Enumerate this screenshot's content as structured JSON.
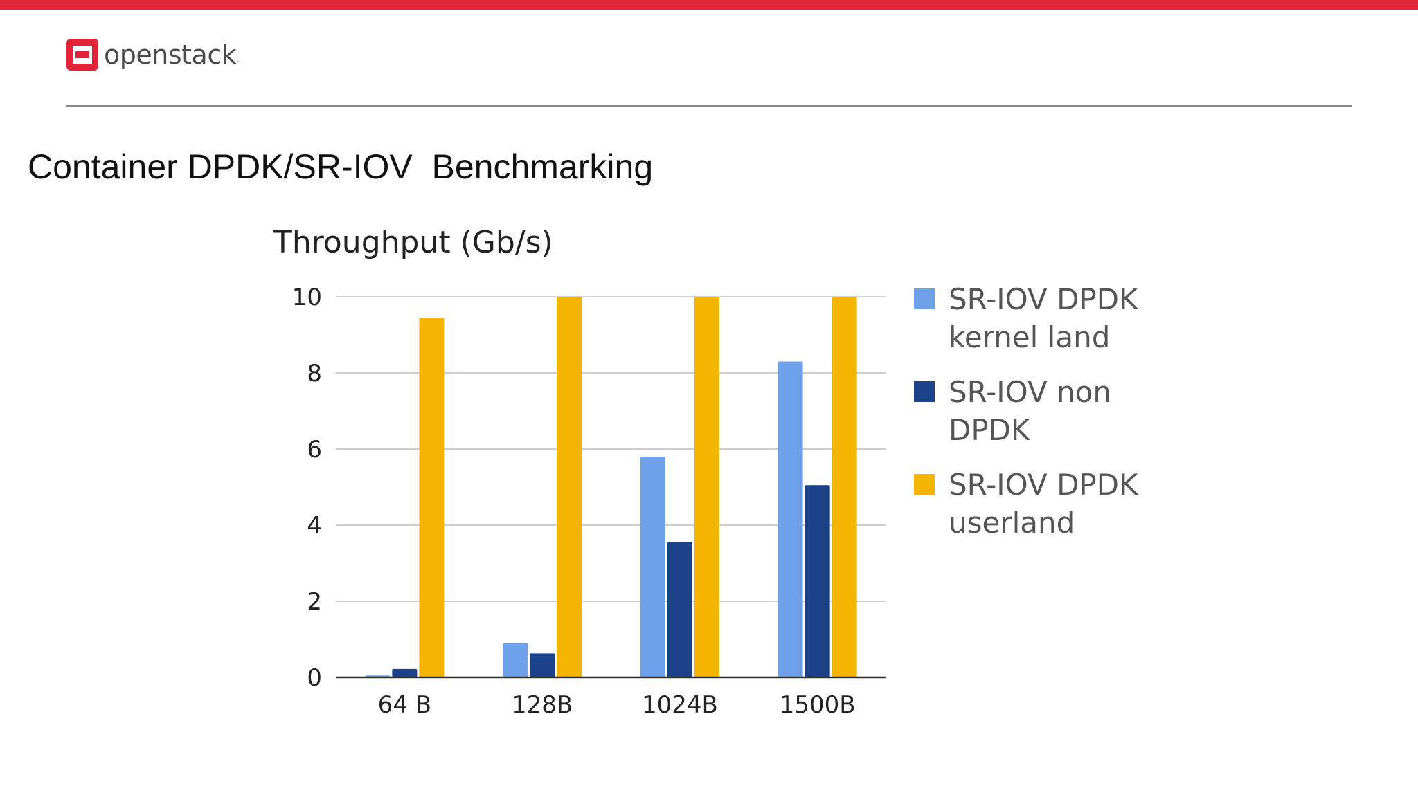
{
  "header": {
    "logo_text": "openstack",
    "logo_mark": ".",
    "accent_color": "#e1243a"
  },
  "slide": {
    "title": "Container DPDK/SR-IOV  Benchmarking"
  },
  "chart_data": {
    "type": "bar",
    "ylabel": "Throughput (Gb/s)",
    "xlabel": "",
    "categories": [
      "64 B",
      "128B",
      "1024B",
      "1500B"
    ],
    "ylim": [
      0,
      10
    ],
    "yticks": [
      0,
      2,
      4,
      6,
      8,
      10
    ],
    "grid": true,
    "legend_position": "right",
    "series": [
      {
        "name": "SR-IOV DPDK kernel land",
        "color": "#6fa0ea",
        "values": [
          0.05,
          0.9,
          5.8,
          8.3
        ]
      },
      {
        "name": "SR-IOV non DPDK",
        "color": "#1c428a",
        "values": [
          0.22,
          0.63,
          3.55,
          5.05
        ]
      },
      {
        "name": "SR-IOV DPDK userland",
        "color": "#f4b400",
        "values": [
          9.45,
          10,
          10,
          10
        ]
      }
    ]
  }
}
